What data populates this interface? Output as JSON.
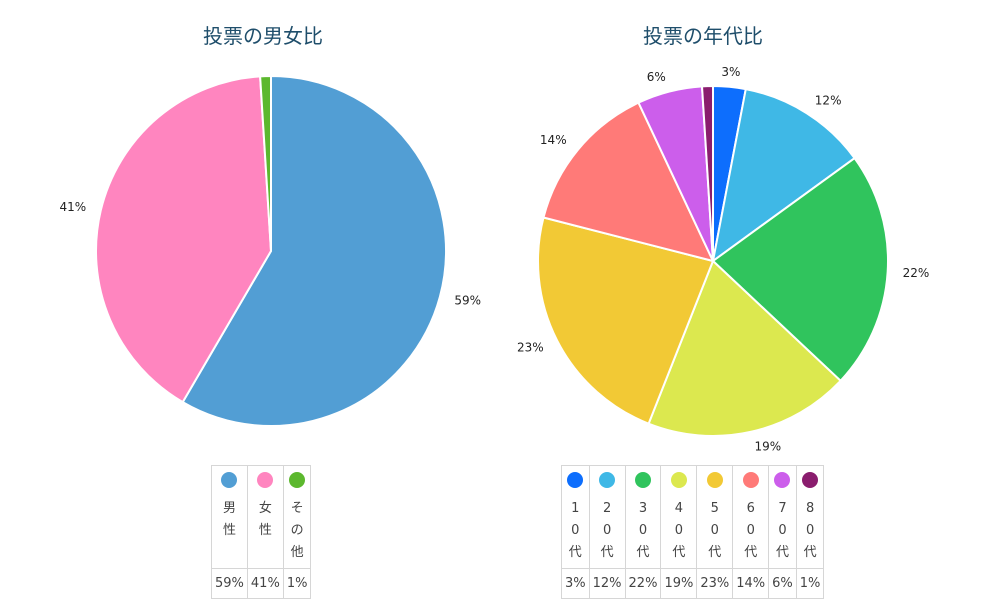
{
  "charts": [
    {
      "title": "投票の男女比",
      "legend": [
        {
          "label": "男性",
          "value": "59%",
          "color": "#529ed4"
        },
        {
          "label": "女性",
          "value": "41%",
          "color": "#ff85bf"
        },
        {
          "label": "その他",
          "value": "1%",
          "color": "#5cb82e"
        }
      ]
    },
    {
      "title": "投票の年代比",
      "legend": [
        {
          "label": "10代",
          "value": "3%",
          "color": "#0d6efd"
        },
        {
          "label": "20代",
          "value": "12%",
          "color": "#3fb8e6"
        },
        {
          "label": "30代",
          "value": "22%",
          "color": "#30c45d"
        },
        {
          "label": "40代",
          "value": "19%",
          "color": "#dce84f"
        },
        {
          "label": "50代",
          "value": "23%",
          "color": "#f2c935"
        },
        {
          "label": "60代",
          "value": "14%",
          "color": "#ff7a78"
        },
        {
          "label": "70代",
          "value": "6%",
          "color": "#cc5eeb"
        },
        {
          "label": "80代",
          "value": "1%",
          "color": "#8a1d6e"
        }
      ]
    }
  ],
  "chart_data": [
    {
      "type": "pie",
      "title": "投票の男女比",
      "categories": [
        "男性",
        "女性",
        "その他"
      ],
      "values": [
        59,
        41,
        1
      ],
      "labels": [
        "59%",
        "41%",
        ""
      ],
      "colors": [
        "#529ed4",
        "#ff85bf",
        "#5cb82e"
      ],
      "legend": "bottom"
    },
    {
      "type": "pie",
      "title": "投票の年代比",
      "categories": [
        "10代",
        "20代",
        "30代",
        "40代",
        "50代",
        "60代",
        "70代",
        "80代"
      ],
      "values": [
        3,
        12,
        22,
        19,
        23,
        14,
        6,
        1
      ],
      "labels": [
        "3%",
        "12%",
        "22%",
        "19%",
        "23%",
        "14%",
        "6%",
        ""
      ],
      "colors": [
        "#0d6efd",
        "#3fb8e6",
        "#30c45d",
        "#dce84f",
        "#f2c935",
        "#ff7a78",
        "#cc5eeb",
        "#8a1d6e"
      ],
      "legend": "bottom"
    }
  ]
}
